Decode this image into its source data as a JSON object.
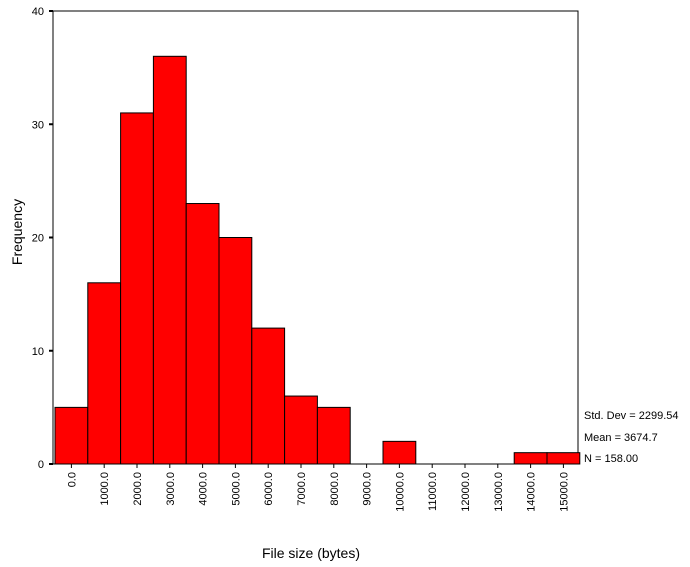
{
  "chart_data": {
    "type": "bar",
    "subtype": "histogram",
    "title": "",
    "xlabel": "File size (bytes)",
    "ylabel": "Frequency",
    "ylim": [
      0,
      40
    ],
    "y_ticks": [
      "0",
      "10",
      "20",
      "30",
      "40"
    ],
    "bin_width": 1000,
    "categories": [
      "0.0",
      "1000.0",
      "2000.0",
      "3000.0",
      "4000.0",
      "5000.0",
      "6000.0",
      "7000.0",
      "8000.0",
      "9000.0",
      "10000.0",
      "11000.0",
      "12000.0",
      "13000.0",
      "14000.0",
      "15000.0"
    ],
    "values": [
      5,
      16,
      31,
      36,
      23,
      20,
      12,
      6,
      5,
      0,
      2,
      0,
      0,
      0,
      1,
      1
    ],
    "bar_color": "#ff0000",
    "bar_border_color": "#000000",
    "grid": false,
    "legend": "none",
    "stats": [
      "Std. Dev = 2299.54",
      "Mean = 3674.7",
      "N = 158.00"
    ]
  }
}
